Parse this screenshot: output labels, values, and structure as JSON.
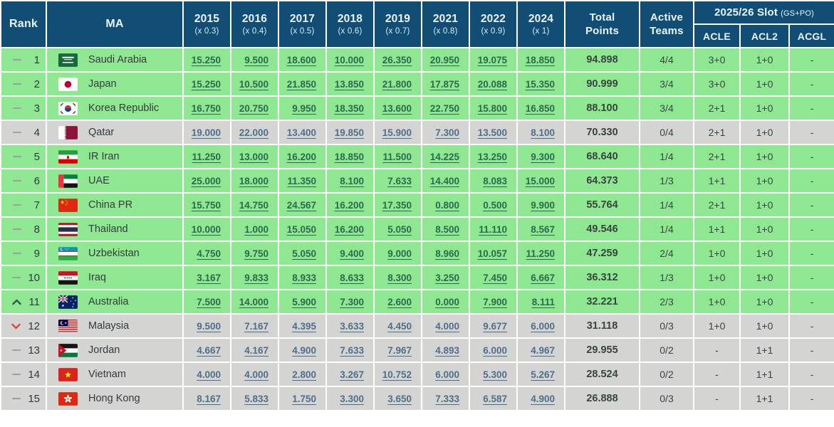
{
  "colors": {
    "header_bg": "#114d74",
    "green_row_bg": "#90e791",
    "grey_row_bg": "#d4d4d2",
    "green_row_link": "#2b6a50",
    "grey_row_link": "#4e6f8c",
    "rank_up": "#2b5b4b",
    "rank_down": "#d14b38"
  },
  "table": {
    "header": {
      "rank": "Rank",
      "ma": "MA",
      "years": [
        {
          "year": "2015",
          "mult": "(x 0.3)"
        },
        {
          "year": "2016",
          "mult": "(x 0.4)"
        },
        {
          "year": "2017",
          "mult": "(x 0.5)"
        },
        {
          "year": "2018",
          "mult": "(x 0.6)"
        },
        {
          "year": "2019",
          "mult": "(x 0.7)"
        },
        {
          "year": "2021",
          "mult": "(x 0.8)"
        },
        {
          "year": "2022",
          "mult": "(x 0.9)"
        },
        {
          "year": "2024",
          "mult": "(x 1)"
        }
      ],
      "total": "Total\nPoints",
      "active": "Active\nTeams",
      "slot_title": "2025/26 Slot",
      "slot_note": "(GS+PO)",
      "slot_cols": [
        "ACLE",
        "ACL2",
        "ACGL"
      ]
    },
    "rows": [
      {
        "movement": "same",
        "rank": "1",
        "country": "Saudi Arabia",
        "flag": "sa",
        "zone": "green",
        "values": [
          "15.250",
          "9.500",
          "18.600",
          "10.000",
          "26.350",
          "20.950",
          "19.075",
          "18.850"
        ],
        "total": "94.898",
        "active": "4/4",
        "acle": "3+0",
        "acl2": "1+0",
        "acgl": "-"
      },
      {
        "movement": "same",
        "rank": "2",
        "country": "Japan",
        "flag": "jp",
        "zone": "green",
        "values": [
          "15.250",
          "10.500",
          "21.850",
          "13.850",
          "21.800",
          "17.875",
          "20.088",
          "15.350"
        ],
        "total": "90.999",
        "active": "3/4",
        "acle": "3+0",
        "acl2": "1+0",
        "acgl": "-"
      },
      {
        "movement": "same",
        "rank": "3",
        "country": "Korea Republic",
        "flag": "kr",
        "zone": "green",
        "values": [
          "16.750",
          "20.750",
          "9.950",
          "18.350",
          "13.600",
          "22.750",
          "15.800",
          "16.850"
        ],
        "total": "88.100",
        "active": "3/4",
        "acle": "2+1",
        "acl2": "1+0",
        "acgl": "-"
      },
      {
        "movement": "same",
        "rank": "4",
        "country": "Qatar",
        "flag": "qa",
        "zone": "grey",
        "values": [
          "19.000",
          "22.000",
          "13.400",
          "19.850",
          "15.900",
          "7.300",
          "13.500",
          "8.100"
        ],
        "total": "70.330",
        "active": "0/4",
        "acle": "2+1",
        "acl2": "1+0",
        "acgl": "-"
      },
      {
        "movement": "same",
        "rank": "5",
        "country": "IR Iran",
        "flag": "ir",
        "zone": "green",
        "values": [
          "11.250",
          "13.000",
          "16.200",
          "18.850",
          "11.500",
          "14.225",
          "13.250",
          "9.300"
        ],
        "total": "68.640",
        "active": "1/4",
        "acle": "2+1",
        "acl2": "1+0",
        "acgl": "-"
      },
      {
        "movement": "same",
        "rank": "6",
        "country": "UAE",
        "flag": "ae",
        "zone": "green",
        "values": [
          "25.000",
          "18.000",
          "11.350",
          "8.100",
          "7.633",
          "14.400",
          "8.083",
          "15.000"
        ],
        "total": "64.373",
        "active": "1/3",
        "acle": "1+1",
        "acl2": "1+0",
        "acgl": "-"
      },
      {
        "movement": "same",
        "rank": "7",
        "country": "China PR",
        "flag": "cn",
        "zone": "green",
        "values": [
          "15.750",
          "14.750",
          "24.567",
          "16.200",
          "17.350",
          "0.800",
          "0.500",
          "9.900"
        ],
        "total": "55.764",
        "active": "1/4",
        "acle": "2+1",
        "acl2": "1+0",
        "acgl": "-"
      },
      {
        "movement": "same",
        "rank": "8",
        "country": "Thailand",
        "flag": "th",
        "zone": "green",
        "values": [
          "10.000",
          "1.000",
          "15.050",
          "16.200",
          "5.050",
          "8.500",
          "11.110",
          "8.567"
        ],
        "total": "49.546",
        "active": "1/4",
        "acle": "1+1",
        "acl2": "1+0",
        "acgl": "-"
      },
      {
        "movement": "same",
        "rank": "9",
        "country": "Uzbekistan",
        "flag": "uz",
        "zone": "green",
        "values": [
          "4.750",
          "9.750",
          "5.050",
          "9.400",
          "9.000",
          "8.960",
          "10.057",
          "11.250"
        ],
        "total": "47.259",
        "active": "2/4",
        "acle": "1+0",
        "acl2": "1+0",
        "acgl": "-"
      },
      {
        "movement": "same",
        "rank": "10",
        "country": "Iraq",
        "flag": "iq",
        "zone": "green",
        "values": [
          "3.167",
          "9.833",
          "8.933",
          "8.633",
          "8.300",
          "3.250",
          "7.450",
          "6.667"
        ],
        "total": "36.312",
        "active": "1/3",
        "acle": "1+0",
        "acl2": "1+0",
        "acgl": "-"
      },
      {
        "movement": "up",
        "rank": "11",
        "country": "Australia",
        "flag": "au",
        "zone": "green",
        "values": [
          "7.500",
          "14.000",
          "5.900",
          "7.300",
          "2.600",
          "0.000",
          "7.900",
          "8.111"
        ],
        "total": "32.221",
        "active": "2/3",
        "acle": "1+0",
        "acl2": "1+0",
        "acgl": "-"
      },
      {
        "movement": "down",
        "rank": "12",
        "country": "Malaysia",
        "flag": "my",
        "zone": "grey",
        "values": [
          "9.500",
          "7.167",
          "4.395",
          "3.633",
          "4.450",
          "4.000",
          "9.677",
          "6.000"
        ],
        "total": "31.118",
        "active": "0/3",
        "acle": "1+0",
        "acl2": "1+0",
        "acgl": "-"
      },
      {
        "movement": "same",
        "rank": "13",
        "country": "Jordan",
        "flag": "jo",
        "zone": "grey",
        "values": [
          "4.667",
          "4.167",
          "4.900",
          "7.633",
          "7.967",
          "4.893",
          "6.000",
          "4.967"
        ],
        "total": "29.955",
        "active": "0/2",
        "acle": "-",
        "acl2": "1+1",
        "acgl": "-"
      },
      {
        "movement": "same",
        "rank": "14",
        "country": "Vietnam",
        "flag": "vn",
        "zone": "grey",
        "values": [
          "4.000",
          "4.000",
          "2.800",
          "3.267",
          "10.752",
          "6.000",
          "5.300",
          "5.267"
        ],
        "total": "28.524",
        "active": "0/2",
        "acle": "-",
        "acl2": "1+1",
        "acgl": "-"
      },
      {
        "movement": "same",
        "rank": "15",
        "country": "Hong Kong",
        "flag": "hk",
        "zone": "grey",
        "values": [
          "8.167",
          "5.833",
          "1.750",
          "3.300",
          "3.650",
          "7.333",
          "6.587",
          "4.900"
        ],
        "total": "26.888",
        "active": "0/3",
        "acle": "-",
        "acl2": "1+1",
        "acgl": "-"
      }
    ]
  }
}
